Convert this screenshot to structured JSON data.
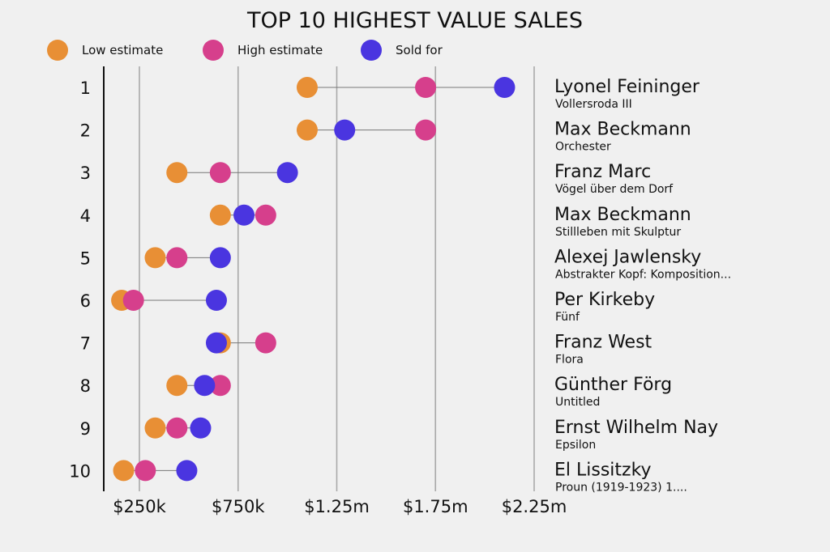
{
  "chart_data": {
    "type": "dot-range",
    "title": "TOP 10 HIGHEST VALUE SALES",
    "xlabel": "",
    "ylabel": "",
    "xlim": [
      70000,
      2400000
    ],
    "x_ticks": [
      {
        "value": 250000,
        "label": "$250k"
      },
      {
        "value": 750000,
        "label": "$750k"
      },
      {
        "value": 1250000,
        "label": "$1.25m"
      },
      {
        "value": 1750000,
        "label": "$1.75m"
      },
      {
        "value": 2250000,
        "label": "$2.25m"
      }
    ],
    "legend": {
      "placement": "top-left",
      "entries": [
        {
          "key": "low",
          "label": "Low estimate",
          "color": "#e88f35"
        },
        {
          "key": "high",
          "label": "High estimate",
          "color": "#d63f8c"
        },
        {
          "key": "sold",
          "label": "Sold for",
          "color": "#4a35e0"
        }
      ]
    },
    "rows": [
      {
        "rank": "1",
        "artist": "Lyonel Feininger",
        "work": "Vollersroda III",
        "low": 1100000,
        "high": 1700000,
        "sold": 2100000
      },
      {
        "rank": "2",
        "artist": "Max Beckmann",
        "work": "Orchester",
        "low": 1100000,
        "high": 1700000,
        "sold": 1290000
      },
      {
        "rank": "3",
        "artist": "Franz Marc",
        "work": "Vögel über dem Dorf",
        "low": 440000,
        "high": 660000,
        "sold": 1000000
      },
      {
        "rank": "4",
        "artist": "Max Beckmann",
        "work": "Stillleben mit Skulptur",
        "low": 660000,
        "high": 890000,
        "sold": 780000
      },
      {
        "rank": "5",
        "artist": "Alexej Jawlensky",
        "work": "Abstrakter Kopf: Komposition...",
        "low": 330000,
        "high": 440000,
        "sold": 660000
      },
      {
        "rank": "6",
        "artist": "Per Kirkeby",
        "work": "Fünf",
        "low": 160000,
        "high": 220000,
        "sold": 640000
      },
      {
        "rank": "7",
        "artist": "Franz West",
        "work": "Flora",
        "low": 660000,
        "high": 890000,
        "sold": 640000
      },
      {
        "rank": "8",
        "artist": "Günther Förg",
        "work": "Untitled",
        "low": 440000,
        "high": 660000,
        "sold": 580000
      },
      {
        "rank": "9",
        "artist": "Ernst Wilhelm Nay",
        "work": "Epsilon",
        "low": 330000,
        "high": 440000,
        "sold": 560000
      },
      {
        "rank": "10",
        "artist": "El Lissitzky",
        "work": "Proun (1919-1923) 1....",
        "low": 170000,
        "high": 280000,
        "sold": 490000
      }
    ]
  }
}
